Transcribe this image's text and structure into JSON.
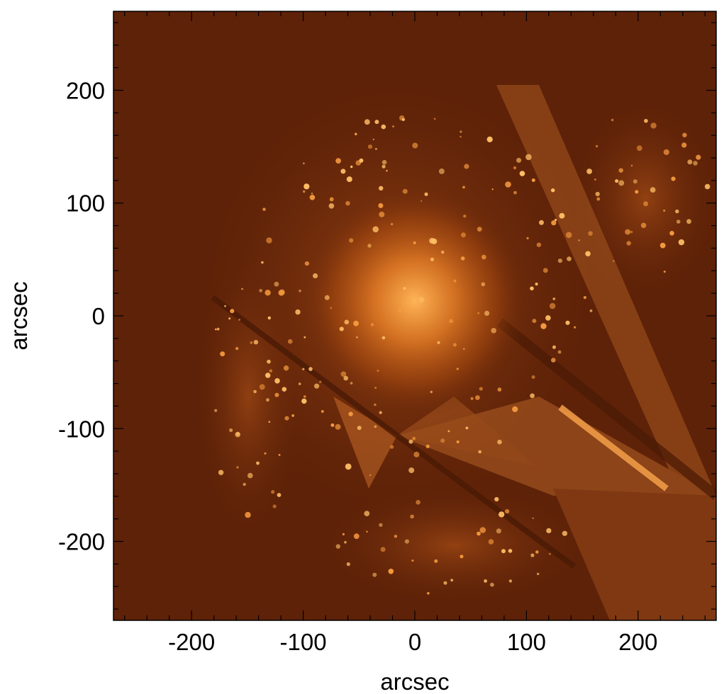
{
  "image": {
    "subject": "galaxy-emission-map",
    "colormap": [
      "#5c1f06",
      "#a8480d",
      "#ff9a2e",
      "#ffe0a0"
    ],
    "frame_color": "#000000",
    "background_color": "#5e2208"
  },
  "axes": {
    "xlabel": "arcsec",
    "ylabel": "arcsec",
    "x_ticks": [
      {
        "value": -200,
        "label": "-200"
      },
      {
        "value": -100,
        "label": "-100"
      },
      {
        "value": 0,
        "label": "0"
      },
      {
        "value": 100,
        "label": "100"
      },
      {
        "value": 200,
        "label": "200"
      }
    ],
    "y_ticks": [
      {
        "value": 200,
        "label": "200"
      },
      {
        "value": 100,
        "label": "100"
      },
      {
        "value": 0,
        "label": "0"
      },
      {
        "value": -100,
        "label": "-100"
      },
      {
        "value": -200,
        "label": "-200"
      }
    ],
    "xlim": [
      -270,
      270
    ],
    "ylim": [
      -270,
      270
    ]
  }
}
